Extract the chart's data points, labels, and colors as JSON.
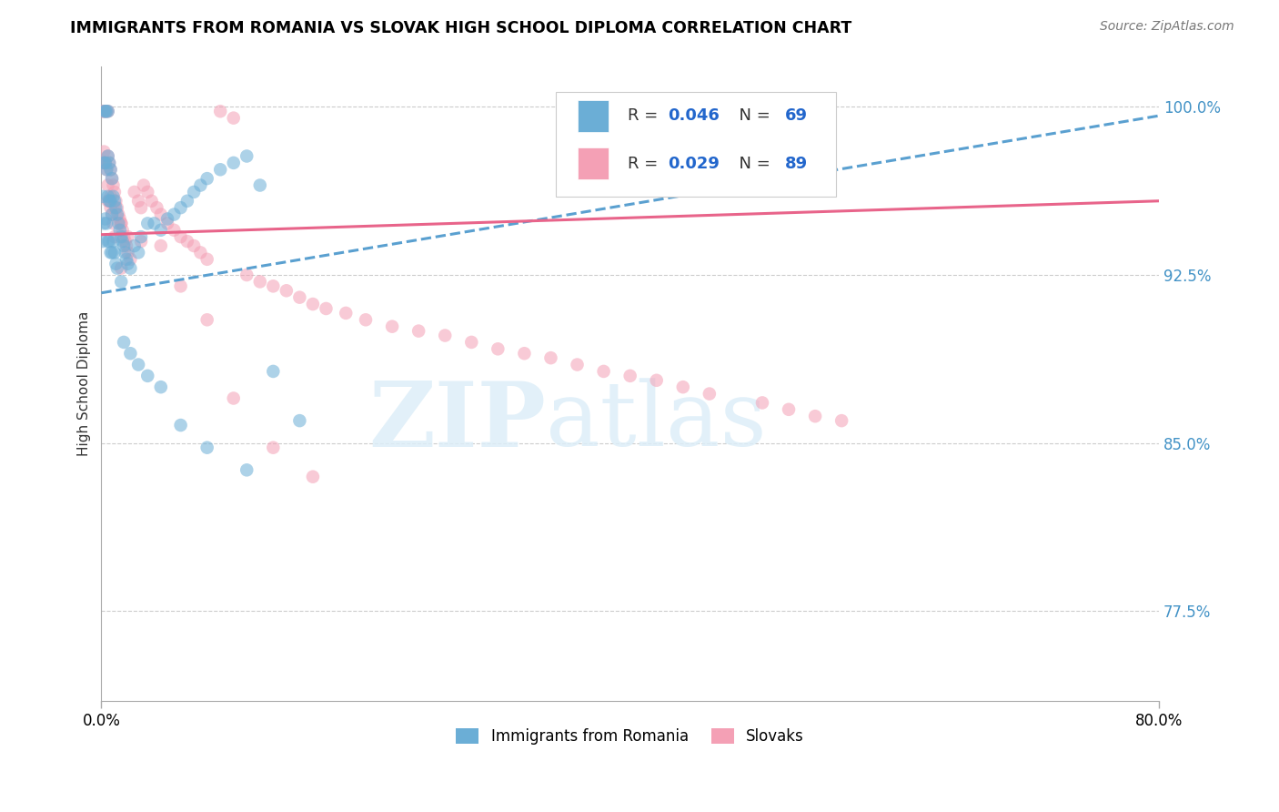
{
  "title": "IMMIGRANTS FROM ROMANIA VS SLOVAK HIGH SCHOOL DIPLOMA CORRELATION CHART",
  "source": "Source: ZipAtlas.com",
  "ylabel": "High School Diploma",
  "xlim": [
    0.0,
    0.8
  ],
  "ylim": [
    0.735,
    1.018
  ],
  "ytick_positions": [
    0.775,
    0.85,
    0.925,
    1.0
  ],
  "ytick_labels": [
    "77.5%",
    "85.0%",
    "92.5%",
    "100.0%"
  ],
  "blue_color": "#6baed6",
  "pink_color": "#f4a0b5",
  "blue_line_color": "#5aa0d0",
  "pink_line_color": "#e8648a",
  "legend_r_blue": "0.046",
  "legend_n_blue": "69",
  "legend_r_pink": "0.029",
  "legend_n_pink": "89",
  "watermark": "ZIPatlas",
  "blue_trend_x": [
    0.0,
    0.8
  ],
  "blue_trend_y": [
    0.917,
    0.996
  ],
  "pink_trend_x": [
    0.0,
    0.8
  ],
  "pink_trend_y": [
    0.943,
    0.958
  ],
  "blue_scatter_x": [
    0.001,
    0.001,
    0.002,
    0.002,
    0.002,
    0.003,
    0.003,
    0.003,
    0.004,
    0.004,
    0.004,
    0.005,
    0.005,
    0.005,
    0.005,
    0.006,
    0.006,
    0.006,
    0.007,
    0.007,
    0.007,
    0.008,
    0.008,
    0.008,
    0.009,
    0.009,
    0.01,
    0.01,
    0.011,
    0.011,
    0.012,
    0.012,
    0.013,
    0.014,
    0.015,
    0.015,
    0.016,
    0.017,
    0.018,
    0.019,
    0.02,
    0.022,
    0.025,
    0.028,
    0.03,
    0.035,
    0.04,
    0.045,
    0.05,
    0.055,
    0.06,
    0.065,
    0.07,
    0.075,
    0.08,
    0.09,
    0.1,
    0.11,
    0.12,
    0.13,
    0.15,
    0.017,
    0.022,
    0.028,
    0.035,
    0.045,
    0.06,
    0.08,
    0.11
  ],
  "blue_scatter_y": [
    0.96,
    0.94,
    0.998,
    0.975,
    0.948,
    0.998,
    0.975,
    0.95,
    0.998,
    0.972,
    0.948,
    0.998,
    0.978,
    0.96,
    0.94,
    0.975,
    0.958,
    0.94,
    0.972,
    0.958,
    0.935,
    0.968,
    0.952,
    0.935,
    0.96,
    0.94,
    0.958,
    0.935,
    0.955,
    0.93,
    0.952,
    0.928,
    0.948,
    0.945,
    0.942,
    0.922,
    0.94,
    0.938,
    0.935,
    0.932,
    0.93,
    0.928,
    0.938,
    0.935,
    0.942,
    0.948,
    0.948,
    0.945,
    0.95,
    0.952,
    0.955,
    0.958,
    0.962,
    0.965,
    0.968,
    0.972,
    0.975,
    0.978,
    0.965,
    0.882,
    0.86,
    0.895,
    0.89,
    0.885,
    0.88,
    0.875,
    0.858,
    0.848,
    0.838
  ],
  "pink_scatter_x": [
    0.001,
    0.002,
    0.002,
    0.003,
    0.003,
    0.004,
    0.004,
    0.005,
    0.005,
    0.005,
    0.006,
    0.006,
    0.007,
    0.007,
    0.008,
    0.008,
    0.009,
    0.009,
    0.01,
    0.01,
    0.011,
    0.012,
    0.013,
    0.014,
    0.015,
    0.015,
    0.016,
    0.017,
    0.018,
    0.019,
    0.02,
    0.022,
    0.025,
    0.028,
    0.03,
    0.032,
    0.035,
    0.038,
    0.042,
    0.045,
    0.05,
    0.055,
    0.06,
    0.065,
    0.07,
    0.075,
    0.08,
    0.09,
    0.1,
    0.11,
    0.12,
    0.13,
    0.14,
    0.15,
    0.16,
    0.17,
    0.185,
    0.2,
    0.22,
    0.24,
    0.26,
    0.28,
    0.3,
    0.32,
    0.34,
    0.36,
    0.38,
    0.4,
    0.42,
    0.44,
    0.46,
    0.5,
    0.52,
    0.54,
    0.56,
    0.002,
    0.003,
    0.005,
    0.007,
    0.01,
    0.015,
    0.02,
    0.03,
    0.045,
    0.06,
    0.08,
    0.1,
    0.13,
    0.16
  ],
  "pink_scatter_y": [
    0.998,
    0.998,
    0.975,
    0.998,
    0.975,
    0.998,
    0.972,
    0.998,
    0.978,
    0.958,
    0.975,
    0.958,
    0.972,
    0.955,
    0.968,
    0.952,
    0.965,
    0.948,
    0.962,
    0.942,
    0.958,
    0.955,
    0.952,
    0.95,
    0.948,
    0.928,
    0.945,
    0.942,
    0.94,
    0.938,
    0.935,
    0.932,
    0.962,
    0.958,
    0.955,
    0.965,
    0.962,
    0.958,
    0.955,
    0.952,
    0.948,
    0.945,
    0.942,
    0.94,
    0.938,
    0.935,
    0.932,
    0.998,
    0.995,
    0.925,
    0.922,
    0.92,
    0.918,
    0.915,
    0.912,
    0.91,
    0.908,
    0.905,
    0.902,
    0.9,
    0.898,
    0.895,
    0.892,
    0.89,
    0.888,
    0.885,
    0.882,
    0.88,
    0.878,
    0.875,
    0.872,
    0.868,
    0.865,
    0.862,
    0.86,
    0.98,
    0.975,
    0.965,
    0.96,
    0.955,
    0.948,
    0.942,
    0.94,
    0.938,
    0.92,
    0.905,
    0.87,
    0.848,
    0.835
  ]
}
